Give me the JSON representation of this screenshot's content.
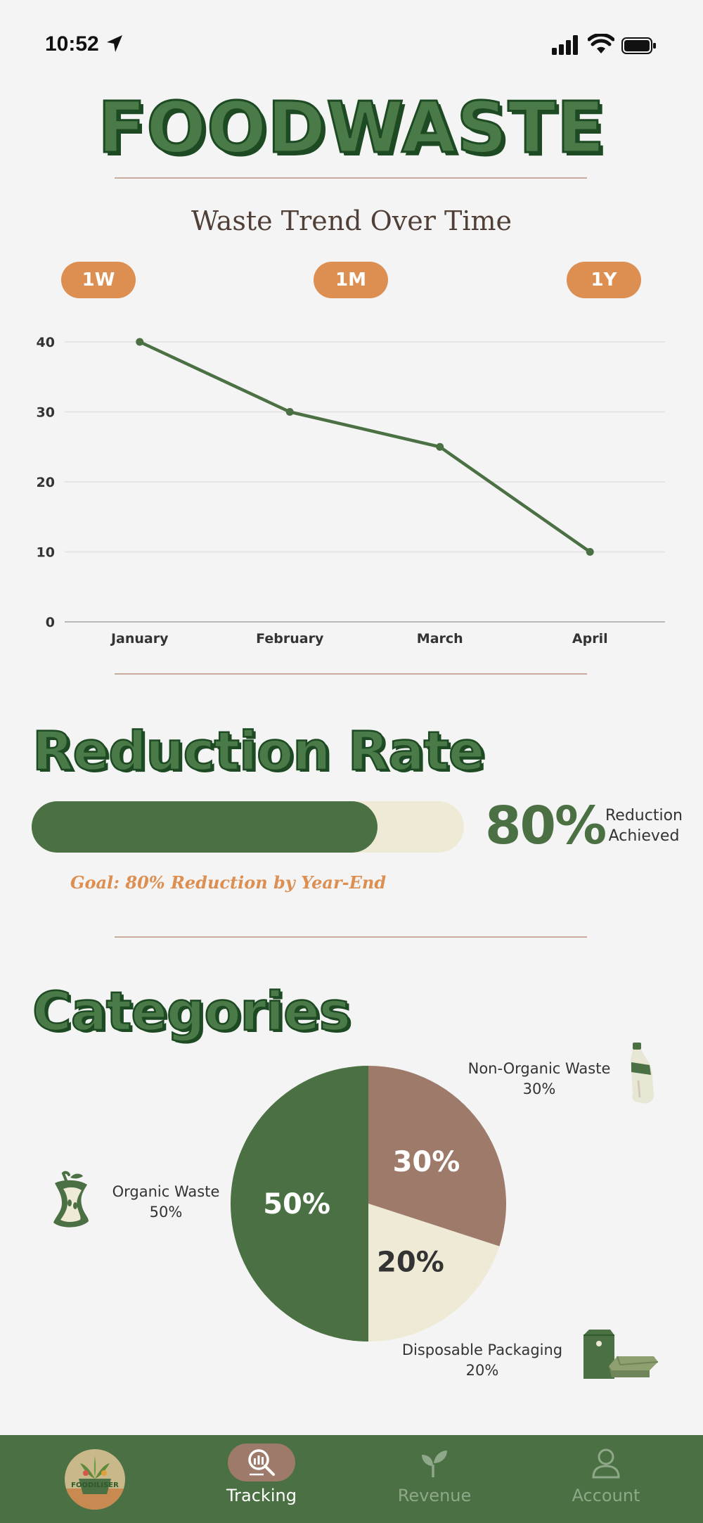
{
  "status_bar": {
    "time": "10:52"
  },
  "app_title": "FOODWASTE",
  "trend": {
    "title": "Waste Trend Over Time",
    "ranges": [
      "1W",
      "1M",
      "1Y"
    ]
  },
  "reduction": {
    "heading": "Reduction Rate",
    "value_text": "80%",
    "progress_fraction": 0.8,
    "label_line1": "Reduction",
    "label_line2": "Achieved",
    "goal": "Goal: 80% Reduction by Year-End"
  },
  "categories": {
    "heading": "Categories",
    "items": [
      {
        "name": "Organic Waste",
        "pct": "50%",
        "icon": "apple-core-icon"
      },
      {
        "name": "Non-Organic Waste",
        "pct": "30%",
        "icon": "plastic-bottle-icon"
      },
      {
        "name": "Disposable Packaging",
        "pct": "20%",
        "icon": "packaging-icon"
      }
    ]
  },
  "chart_data": [
    {
      "type": "line",
      "title": "Waste Trend Over Time",
      "categories": [
        "January",
        "February",
        "March",
        "April"
      ],
      "series": [
        {
          "values": [
            40,
            30,
            25,
            10
          ]
        }
      ],
      "ylim": [
        0,
        40
      ],
      "yticks": [
        "0",
        "10",
        "20",
        "30",
        "40"
      ],
      "grid": true,
      "color": "#4a7043"
    },
    {
      "type": "pie",
      "categories": [
        "Organic Waste",
        "Non-Organic Waste",
        "Disposable Packaging"
      ],
      "values": [
        50,
        30,
        20
      ],
      "slice_labels": [
        "50%",
        "30%",
        "20%"
      ],
      "colors": [
        "#4a7043",
        "#9e7a6b",
        "#eeead6"
      ],
      "label_colors": [
        "#ffffff",
        "#ffffff",
        "#333333"
      ]
    }
  ],
  "nav": {
    "logo_text": "FOODILISER",
    "items": [
      {
        "label": "Tracking",
        "active": true
      },
      {
        "label": "Revenue",
        "active": false
      },
      {
        "label": "Account",
        "active": false
      }
    ]
  },
  "colors": {
    "accent_green": "#4a7043",
    "accent_orange": "#dd8f52",
    "muted_brown": "#9e7a6b",
    "cream": "#eeead6"
  }
}
